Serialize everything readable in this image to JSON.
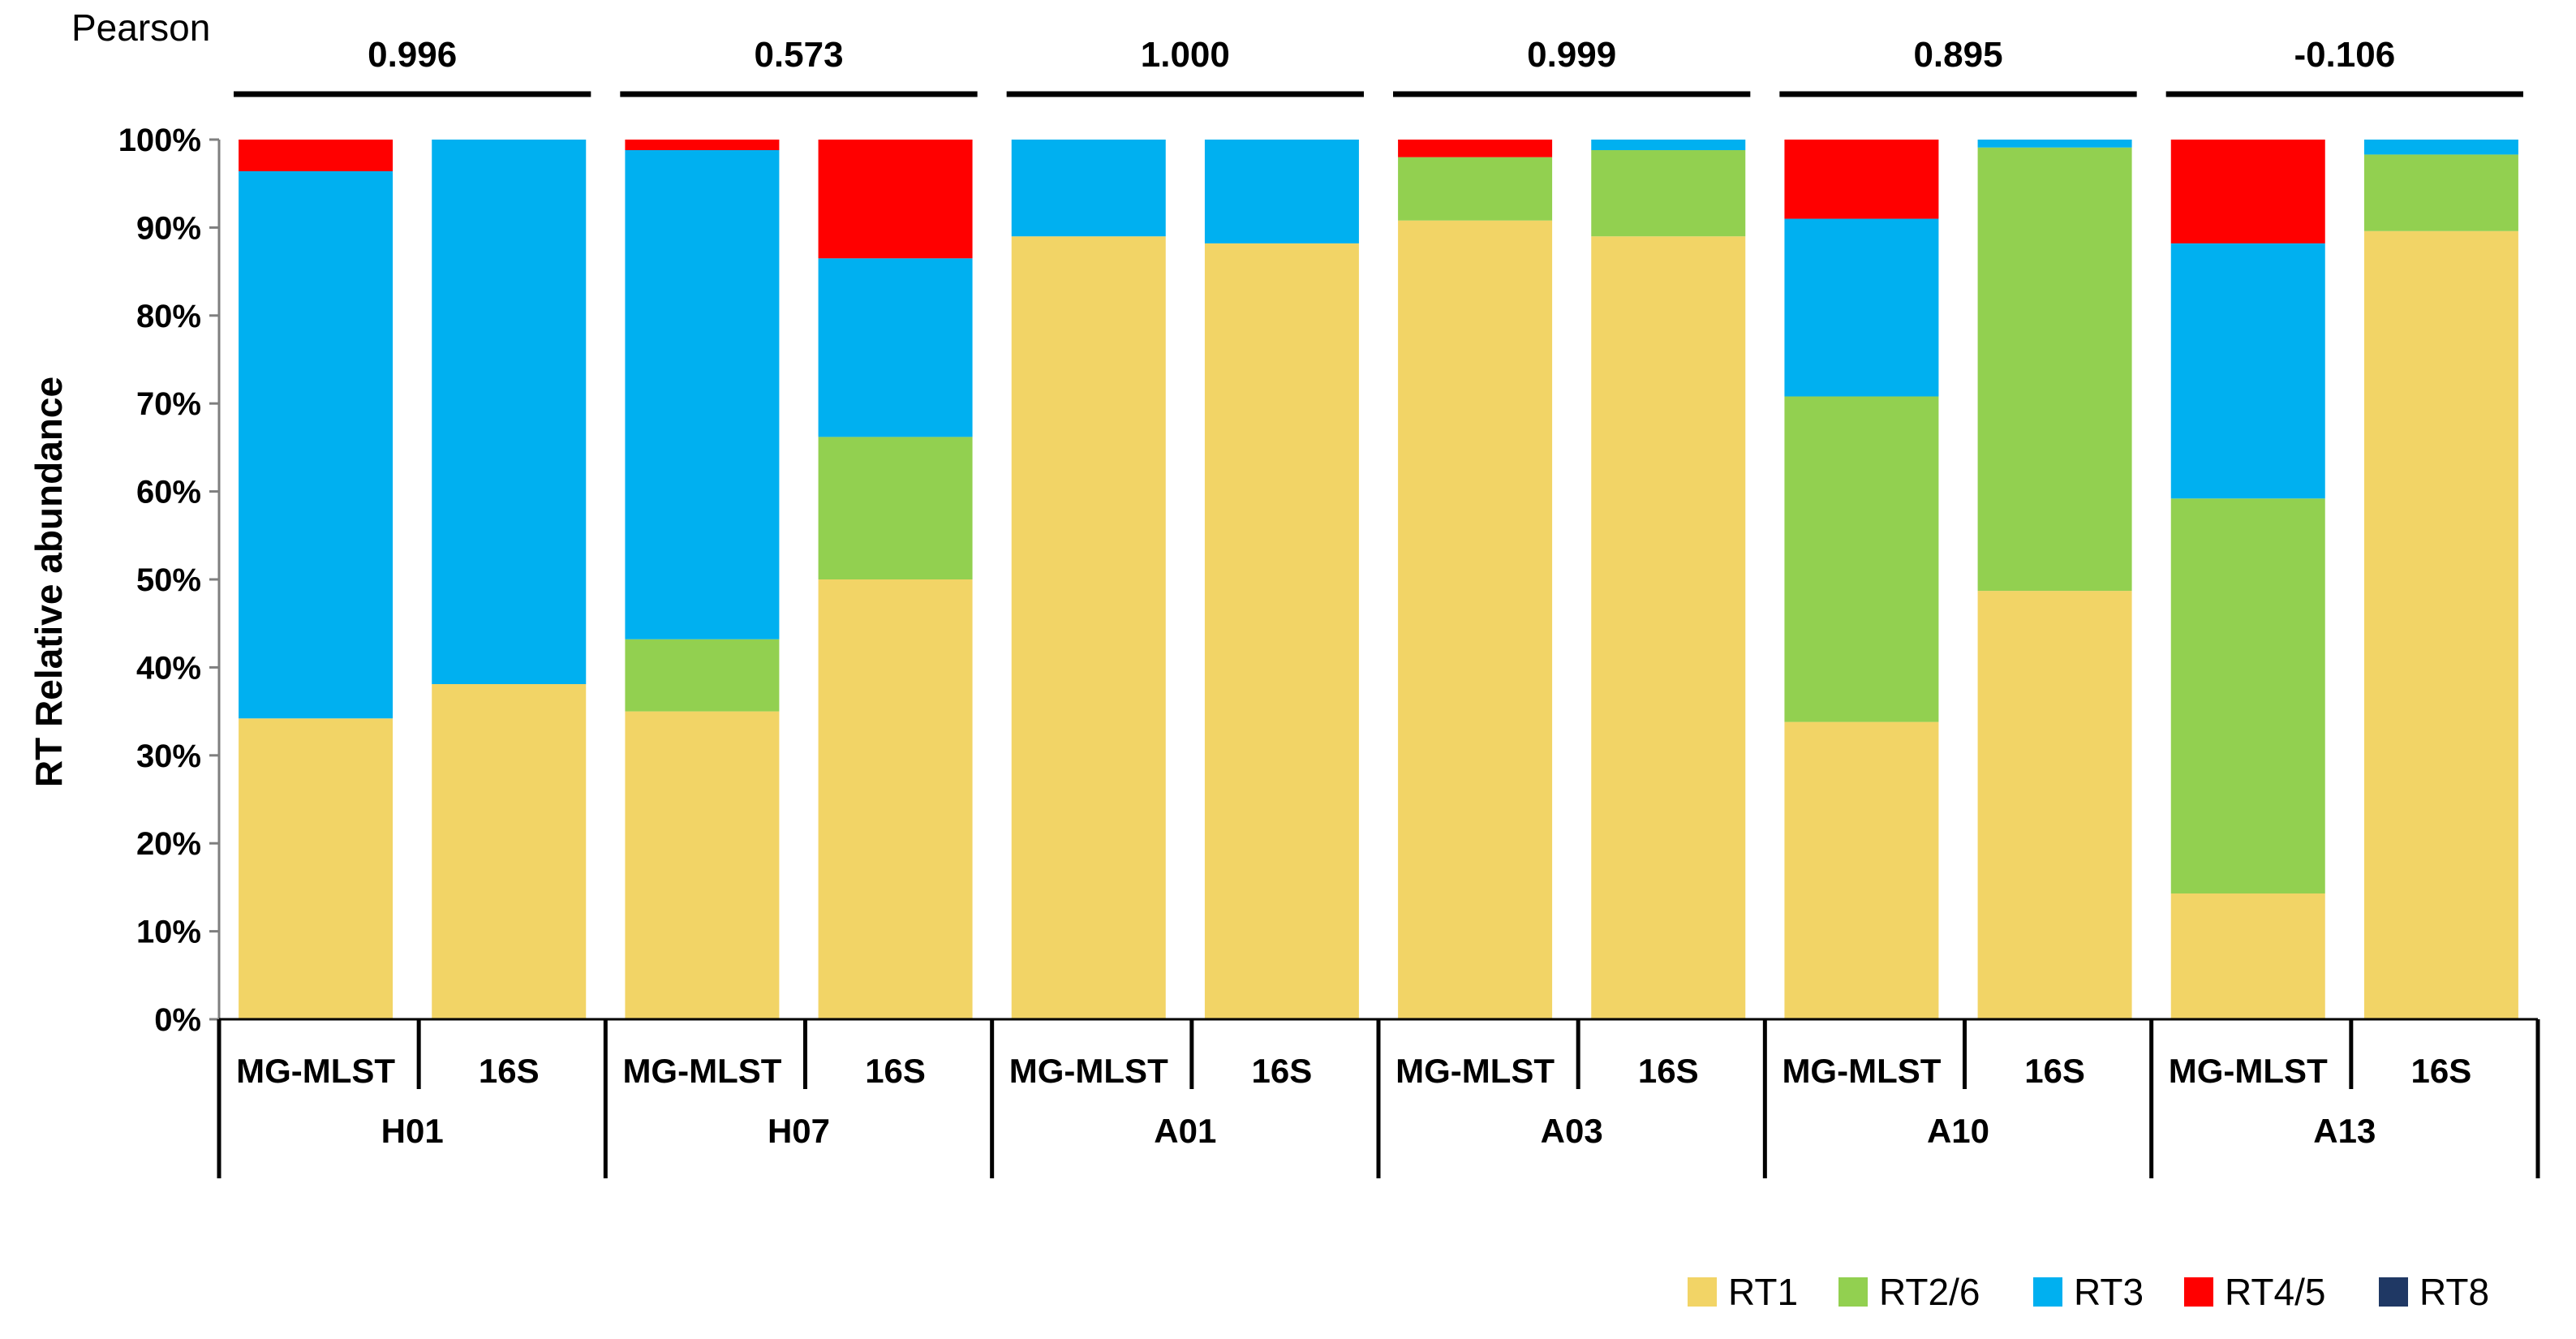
{
  "chart_data": {
    "type": "bar",
    "stacked": "percent",
    "ylabel": "RT Relative abundance",
    "ylim": [
      0,
      100
    ],
    "yticks": [
      "0%",
      "10%",
      "20%",
      "30%",
      "40%",
      "50%",
      "60%",
      "70%",
      "80%",
      "90%",
      "100%"
    ],
    "pearson_label": "Pearson",
    "groups": [
      {
        "name": "H01",
        "pearson": "0.996"
      },
      {
        "name": "H07",
        "pearson": "0.573"
      },
      {
        "name": "A01",
        "pearson": "1.000"
      },
      {
        "name": "A03",
        "pearson": "0.999"
      },
      {
        "name": "A10",
        "pearson": "0.895"
      },
      {
        "name": "A13",
        "pearson": "-0.106"
      }
    ],
    "methods": [
      "MG-MLST",
      "16S"
    ],
    "categories": [
      "H01 MG-MLST",
      "H01 16S",
      "H07 MG-MLST",
      "H07 16S",
      "A01 MG-MLST",
      "A01 16S",
      "A03 MG-MLST",
      "A03 16S",
      "A10 MG-MLST",
      "A10 16S",
      "A13 MG-MLST",
      "A13 16S"
    ],
    "series": [
      {
        "name": "RT1",
        "color": "#F2D466",
        "values": [
          34.2,
          38.1,
          35.0,
          50.0,
          89.0,
          88.2,
          90.8,
          89.0,
          33.8,
          48.7,
          14.3,
          89.6
        ]
      },
      {
        "name": "RT2/6",
        "color": "#92D050",
        "values": [
          0,
          0,
          8.2,
          16.2,
          0,
          0,
          7.2,
          9.8,
          37.0,
          50.4,
          44.9,
          8.7
        ]
      },
      {
        "name": "RT3",
        "color": "#00B0F0",
        "values": [
          62.2,
          61.9,
          55.6,
          20.3,
          11.0,
          11.8,
          0,
          1.2,
          20.2,
          0.9,
          29.0,
          1.7
        ]
      },
      {
        "name": "RT4/5",
        "color": "#FF0000",
        "values": [
          3.6,
          0,
          1.2,
          13.5,
          0,
          0,
          2.0,
          0,
          9.0,
          0,
          11.8,
          0
        ]
      },
      {
        "name": "RT8",
        "color": "#1F3864",
        "values": [
          0,
          0,
          0,
          0,
          0,
          0,
          0,
          0,
          0,
          0,
          0,
          0
        ]
      }
    ]
  }
}
